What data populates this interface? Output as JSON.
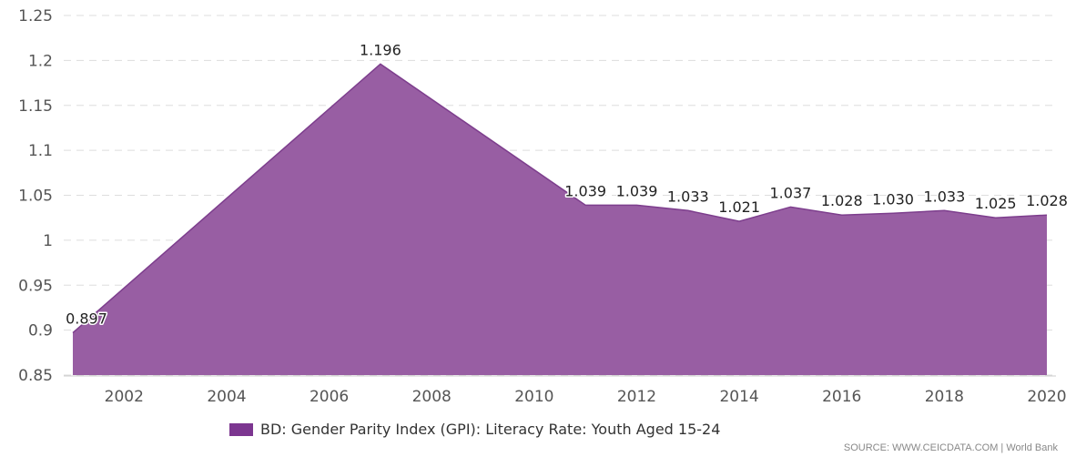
{
  "chart_data": {
    "type": "area",
    "x": [
      2001,
      2007,
      2011,
      2012,
      2013,
      2014,
      2015,
      2016,
      2017,
      2018,
      2019,
      2020
    ],
    "series": [
      {
        "name": "BD: Gender Parity Index (GPI): Literacy Rate: Youth Aged 15-24",
        "values": [
          0.897,
          1.196,
          1.039,
          1.039,
          1.033,
          1.021,
          1.037,
          1.028,
          1.03,
          1.033,
          1.025,
          1.028
        ],
        "labels": [
          "0.897",
          "1.196",
          "1.039",
          "1.039",
          "1.033",
          "1.021",
          "1.037",
          "1.028",
          "1.030",
          "1.033",
          "1.025",
          "1.028"
        ]
      }
    ],
    "xticks": [
      "2002",
      "2004",
      "2006",
      "2008",
      "2010",
      "2012",
      "2014",
      "2016",
      "2018",
      "2020"
    ],
    "yticks": [
      "0.85",
      "0.9",
      "0.95",
      "1",
      "1.05",
      "1.1",
      "1.15",
      "1.2",
      "1.25"
    ],
    "xlim": [
      2001,
      2020
    ],
    "ylim": [
      0.85,
      1.25
    ],
    "grid": true,
    "legend_position": "bottom-center",
    "color": "#985ea3",
    "legend_color": "#7c3690"
  },
  "source": "SOURCE: WWW.CEICDATA.COM | World Bank"
}
